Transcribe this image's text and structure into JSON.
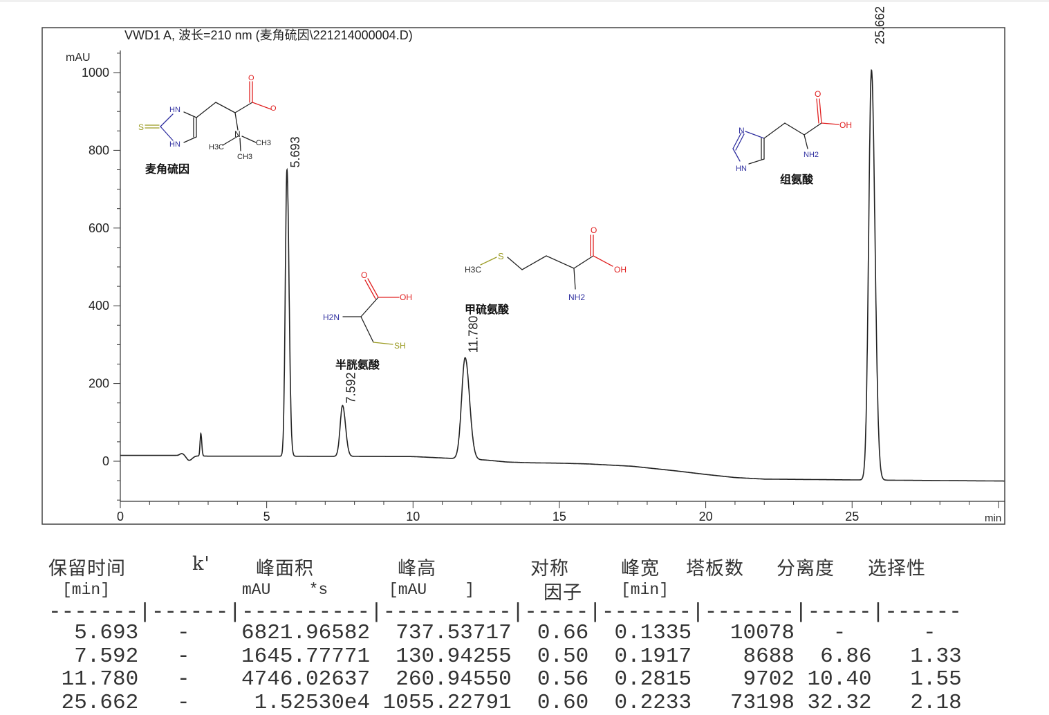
{
  "chart_data": {
    "type": "line",
    "title": "VWD1 A, 波长=210 nm (麦角硫因\\221214000004.D)",
    "ylabel": "mAU",
    "xlabel": "min",
    "xlim": [
      0,
      30.2
    ],
    "ylim": [
      -103,
      1057
    ],
    "xticks": [
      0,
      5,
      10,
      15,
      20,
      25
    ],
    "yticks": [
      0,
      200,
      400,
      600,
      800,
      1000
    ],
    "grid": false,
    "line_color": "#222222",
    "peaks": [
      {
        "rt": 5.693,
        "label": "5.693",
        "height": 737.5,
        "width": 0.1335
      },
      {
        "rt": 7.592,
        "label": "7.592",
        "height": 130.9,
        "width": 0.1917
      },
      {
        "rt": 11.78,
        "label": "11.780",
        "height": 260.9,
        "width": 0.2815
      },
      {
        "rt": 25.662,
        "label": "25.662",
        "height": 1055.2,
        "width": 0.2233
      }
    ],
    "minor_features": [
      {
        "rt": 2.1,
        "height": 5,
        "width": 0.15
      },
      {
        "rt": 2.35,
        "height": -12,
        "width": 0.2
      },
      {
        "rt": 2.75,
        "height": 58,
        "width": 0.06
      }
    ],
    "baseline": [
      [
        0,
        15
      ],
      [
        2,
        15
      ],
      [
        3,
        13
      ],
      [
        5,
        13
      ],
      [
        10,
        12
      ],
      [
        12.5,
        3
      ],
      [
        13.2,
        -2
      ],
      [
        14,
        -4
      ],
      [
        15,
        -5
      ],
      [
        16,
        -7
      ],
      [
        17.5,
        -13
      ],
      [
        19,
        -25
      ],
      [
        20,
        -34
      ],
      [
        21,
        -42
      ],
      [
        22,
        -46
      ],
      [
        25,
        -48
      ],
      [
        30.2,
        -51
      ]
    ],
    "compounds": [
      {
        "name": "麦角硫因",
        "rt": "5.693",
        "atoms": [
          "HN",
          "HN",
          "S",
          "O",
          "O",
          "N",
          "H3C",
          "CH3",
          "CH3"
        ]
      },
      {
        "name": "半胱氨酸",
        "rt": "7.592",
        "atoms": [
          "H2N",
          "O",
          "OH",
          "SH"
        ]
      },
      {
        "name": "甲硫氨酸",
        "rt": "11.780",
        "atoms": [
          "H3C",
          "S",
          "O",
          "OH",
          "NH2"
        ]
      },
      {
        "name": "组氨酸",
        "rt": "25.662",
        "atoms": [
          "N",
          "HN",
          "O",
          "OH",
          "NH2"
        ]
      }
    ]
  },
  "table": {
    "headers": [
      "保留时间",
      "k'",
      "峰面积",
      "峰高",
      "对称",
      "峰宽",
      "塔板数",
      "分离度",
      "选择性"
    ],
    "units": [
      "[min]",
      "mAU    *s",
      "[mAU    ]",
      "因子",
      "[min]"
    ],
    "separator": "-------|------|----------|----------|-----|-------|-------|-----|------",
    "rows": [
      [
        "5.693",
        "-",
        "6821.96582",
        "737.53717",
        "0.66",
        "0.1335",
        "10078",
        "-",
        "-"
      ],
      [
        "7.592",
        "-",
        "1645.77771",
        "130.94255",
        "0.50",
        "0.1917",
        "8688",
        "6.86",
        "1.33"
      ],
      [
        "11.780",
        "-",
        "4746.02637",
        "260.94550",
        "0.56",
        "0.2815",
        "9702",
        "10.40",
        "1.55"
      ],
      [
        "25.662",
        "-",
        "1.52530e4",
        "1055.22791",
        "0.60",
        "0.2233",
        "73198",
        "32.32",
        "2.18"
      ]
    ]
  },
  "colors": {
    "oxygen": "#e02020",
    "sulfur": "#9a9a20",
    "nitrogen": "#3030a0"
  }
}
